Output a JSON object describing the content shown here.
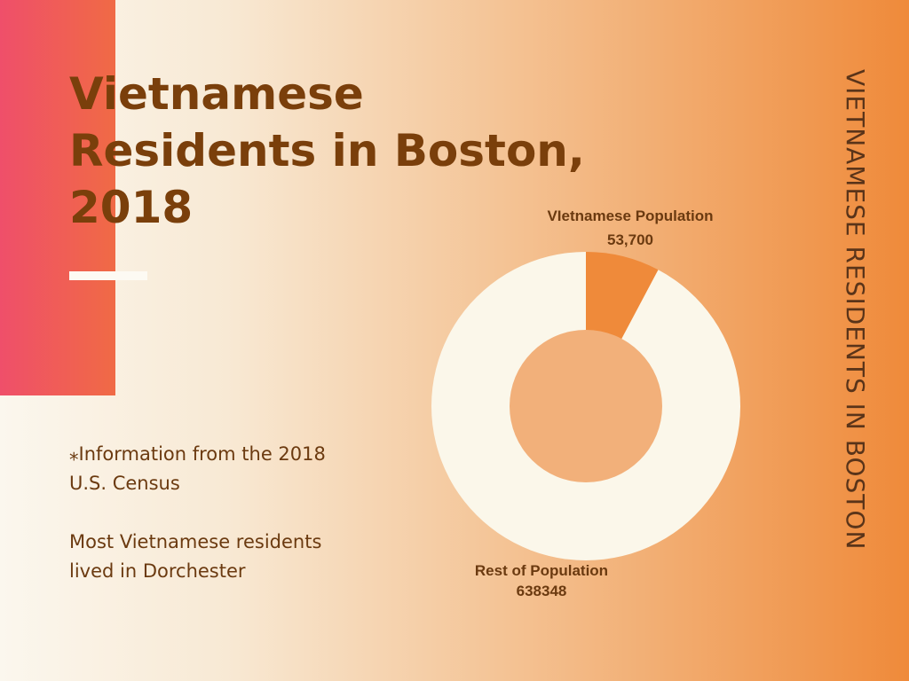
{
  "title": "Vietnamese Residents in Boston, 2018",
  "side_title": "VIETNAMESE RESIDENTS IN BOSTON",
  "notes": {
    "census": "⁎Information from the 2018 U.S. Census",
    "dorchester": "Most Vietnamese residents lived in Dorchester"
  },
  "colors": {
    "vietnamese": "#ef8a3a",
    "rest": "#fbf7ea",
    "hole": "#f2b07a"
  },
  "chart_data": {
    "type": "pie",
    "donut": true,
    "categories": [
      "VIetnamese Population",
      "Rest of Population"
    ],
    "values": [
      53700,
      638348
    ],
    "value_labels": [
      "53,700",
      "638348"
    ]
  }
}
